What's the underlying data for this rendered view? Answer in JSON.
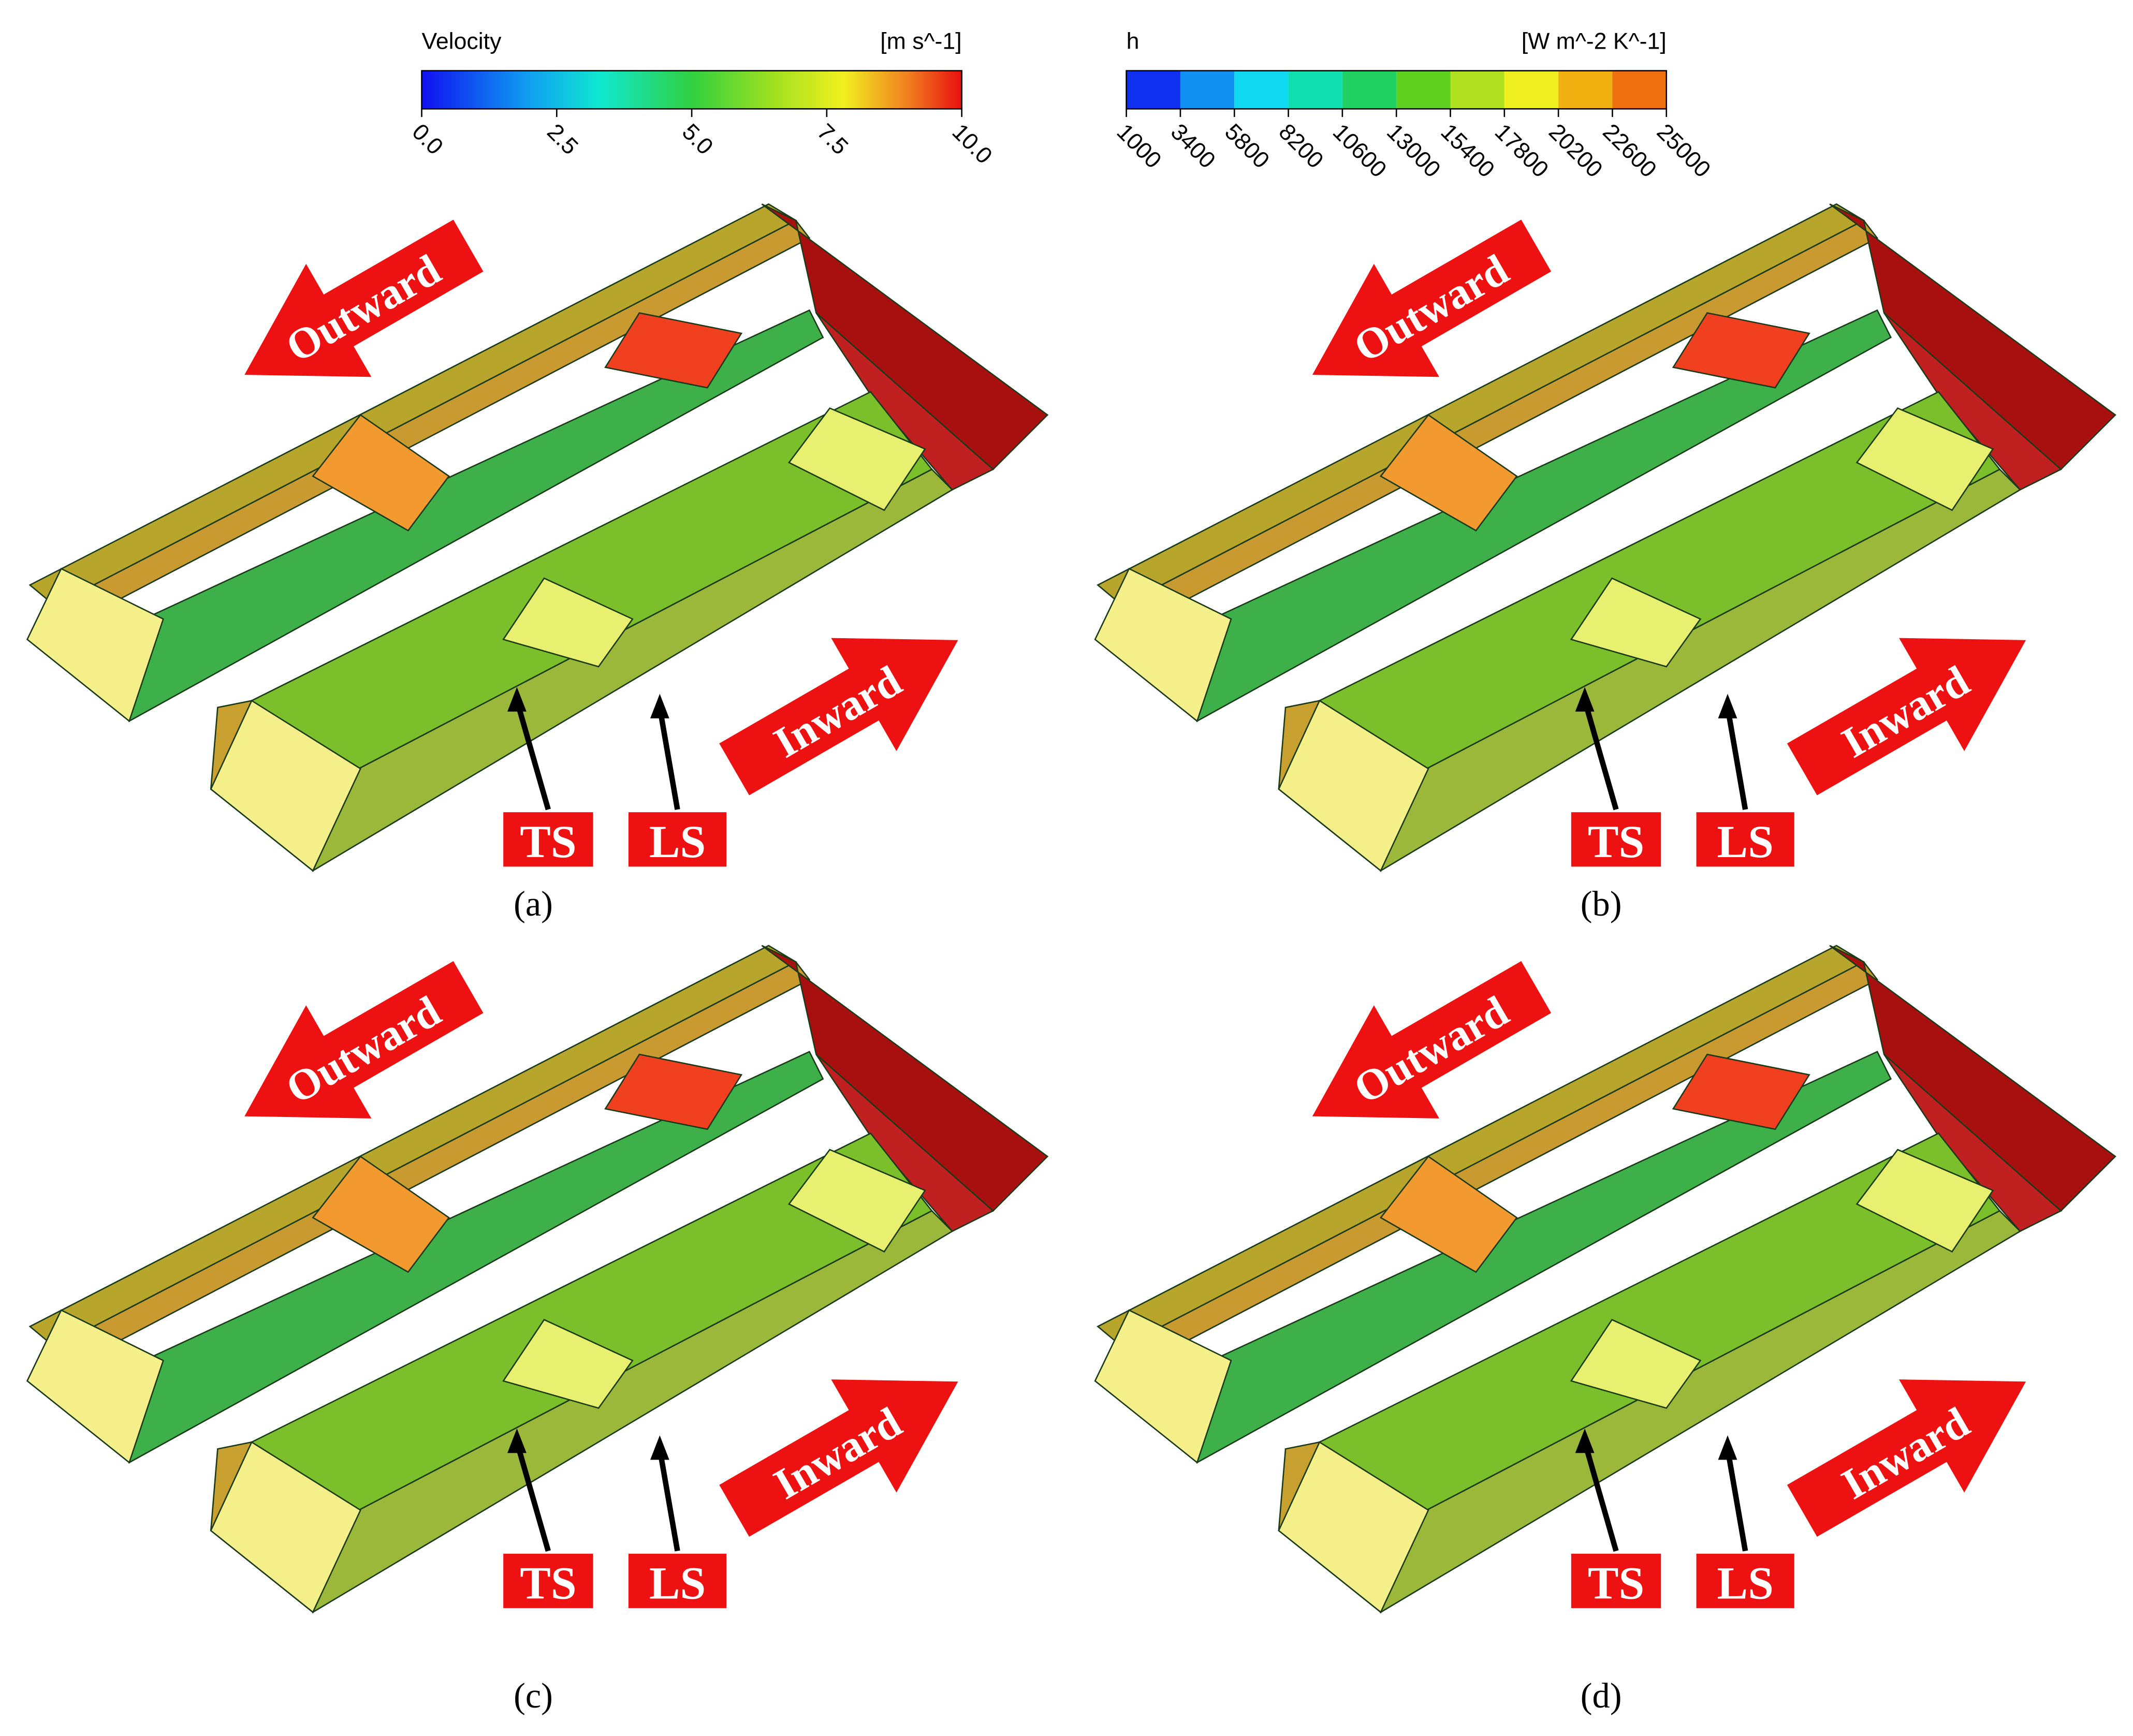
{
  "legends": [
    {
      "title": "Velocity",
      "unit": "[m s^-1]",
      "ticks": [
        "0.0",
        "2.5",
        "5.0",
        "7.5",
        "10.0"
      ]
    },
    {
      "title": "h",
      "unit": "[W m^-2 K^-1]",
      "ticks": [
        "1000",
        "3400",
        "5800",
        "8200",
        "10600",
        "13000",
        "15400",
        "17800",
        "20200",
        "22600",
        "25000"
      ]
    }
  ],
  "panels": [
    {
      "label": "(a)",
      "outward": "Outward",
      "inward": "Inward",
      "markers": [
        "TS",
        "LS"
      ]
    },
    {
      "label": "(b)",
      "outward": "Outward",
      "inward": "Inward",
      "markers": [
        "TS",
        "LS"
      ]
    },
    {
      "label": "(c)",
      "outward": "Outward",
      "inward": "Inward",
      "markers": [
        "TS",
        "LS"
      ]
    },
    {
      "label": "(d)",
      "outward": "Outward",
      "inward": "Inward",
      "markers": [
        "TS",
        "LS"
      ]
    }
  ]
}
